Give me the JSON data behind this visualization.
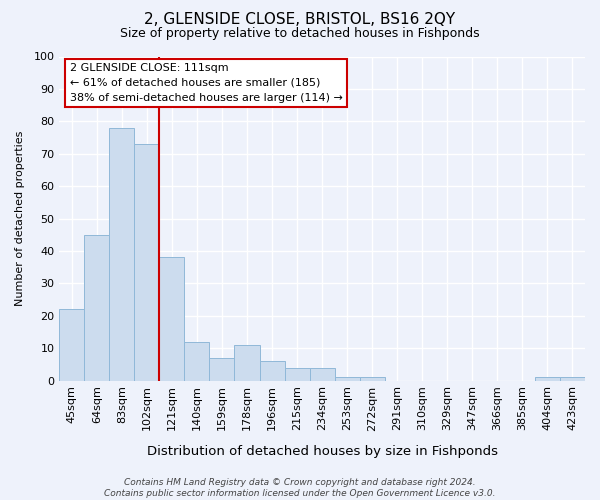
{
  "title": "2, GLENSIDE CLOSE, BRISTOL, BS16 2QY",
  "subtitle": "Size of property relative to detached houses in Fishponds",
  "xlabel": "Distribution of detached houses by size in Fishponds",
  "ylabel": "Number of detached properties",
  "categories": [
    "45sqm",
    "64sqm",
    "83sqm",
    "102sqm",
    "121sqm",
    "140sqm",
    "159sqm",
    "178sqm",
    "196sqm",
    "215sqm",
    "234sqm",
    "253sqm",
    "272sqm",
    "291sqm",
    "310sqm",
    "329sqm",
    "347sqm",
    "366sqm",
    "385sqm",
    "404sqm",
    "423sqm"
  ],
  "values": [
    22,
    45,
    78,
    73,
    38,
    12,
    7,
    11,
    6,
    4,
    4,
    1,
    1,
    0,
    0,
    0,
    0,
    0,
    0,
    1,
    1
  ],
  "bar_color": "#ccdcee",
  "bar_edge_color": "#90b8d8",
  "vline_x": 3.5,
  "vline_color": "#cc0000",
  "annotation_text": "2 GLENSIDE CLOSE: 111sqm\n← 61% of detached houses are smaller (185)\n38% of semi-detached houses are larger (114) →",
  "annotation_box_color": "#ffffff",
  "annotation_box_edge": "#cc0000",
  "ylim": [
    0,
    100
  ],
  "yticks": [
    0,
    10,
    20,
    30,
    40,
    50,
    60,
    70,
    80,
    90,
    100
  ],
  "background_color": "#eef2fb",
  "grid_color": "#ffffff",
  "footnote": "Contains HM Land Registry data © Crown copyright and database right 2024.\nContains public sector information licensed under the Open Government Licence v3.0.",
  "title_fontsize": 11,
  "subtitle_fontsize": 9,
  "xlabel_fontsize": 9.5,
  "ylabel_fontsize": 8,
  "tick_fontsize": 8,
  "footnote_fontsize": 6.5
}
